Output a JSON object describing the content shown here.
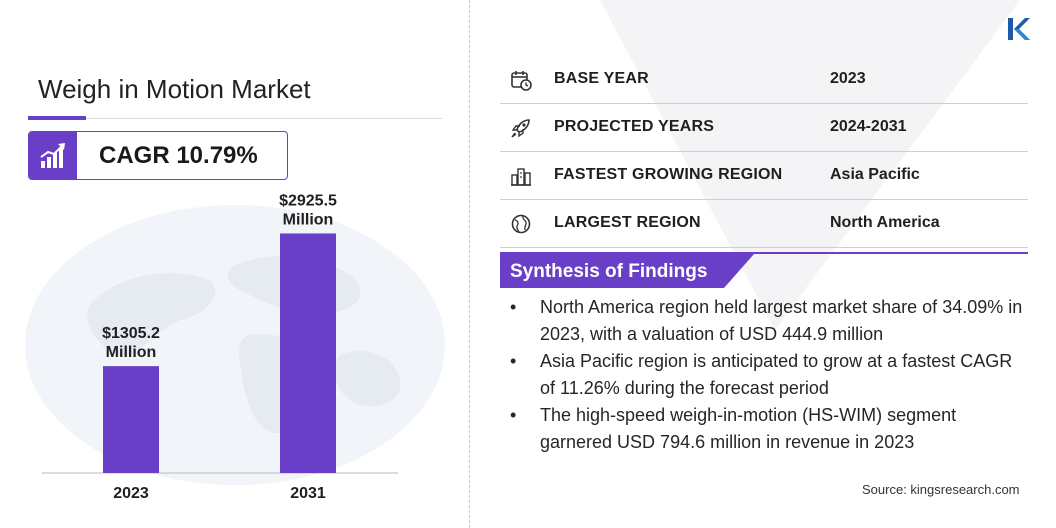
{
  "title": "Weigh in Motion Market",
  "cagr": {
    "text": "CAGR 10.79%",
    "icon": "growth-chart-icon"
  },
  "colors": {
    "accent": "#6a3fc8",
    "text": "#222222",
    "rule": "#cfcfcf"
  },
  "chart_data": {
    "type": "bar",
    "categories": [
      "2023",
      "2031"
    ],
    "values": [
      1305.2,
      2925.5
    ],
    "data_labels": [
      [
        "$1305.2",
        "Million"
      ],
      [
        "$2925.5",
        "Million"
      ]
    ],
    "title": "",
    "xlabel": "",
    "ylabel": "",
    "ylim": [
      0,
      3200
    ],
    "grid": false,
    "legend": "none"
  },
  "table": [
    {
      "icon": "calendar-icon",
      "label": "BASE YEAR",
      "value": "2023"
    },
    {
      "icon": "rocket-icon",
      "label": "PROJECTED YEARS",
      "value": "2024-2031"
    },
    {
      "icon": "city-skyline-icon",
      "label": "FASTEST GROWING REGION",
      "value": "Asia Pacific"
    },
    {
      "icon": "globe-icon",
      "label": "LARGEST REGION",
      "value": "North America"
    }
  ],
  "synthesis": {
    "title": "Synthesis of Findings",
    "bullet": "•",
    "items": [
      "North America region held largest market share of 34.09% in 2023, with a valuation of USD 444.9 million",
      "Asia Pacific region is anticipated to grow at a fastest CAGR of 11.26% during the forecast period",
      "The high-speed weigh-in-motion (HS-WIM) segment garnered USD 794.6 million in revenue in 2023"
    ]
  },
  "source": "Source:  kingsresearch.com",
  "logo": {
    "icon": "kings-research-logo-icon"
  }
}
